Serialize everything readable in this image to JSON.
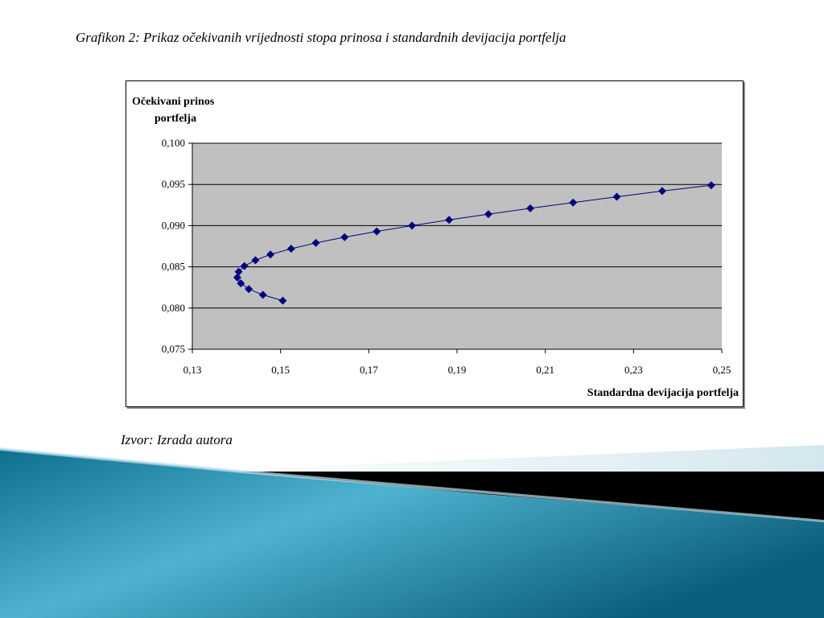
{
  "slide": {
    "caption": "Grafikon 2: Prikaz očekivanih vrijednosti stopa prinosa i standardnih devijacija portfelja",
    "source": "Izvor: Izrada autora"
  },
  "colors": {
    "plot_bg": "#c0c0c0",
    "series": "#000080",
    "gridline": "#000000",
    "deco_teal": "#1a88a8",
    "deco_black": "#000000",
    "deco_light": "#d6e9ef"
  },
  "chart_data": {
    "type": "scatter",
    "title": "",
    "ylabel_lines": [
      "Očekivani prinos",
      "portfelja"
    ],
    "xlabel": "Standardna devijacija portfelja",
    "xlim": [
      0.13,
      0.25
    ],
    "ylim": [
      0.075,
      0.1
    ],
    "x_ticks": [
      "0,13",
      "0,15",
      "0,17",
      "0,19",
      "0,21",
      "0,23",
      "0,25"
    ],
    "y_ticks": [
      "0,075",
      "0,080",
      "0,085",
      "0,090",
      "0,095",
      "0,100"
    ],
    "x_tick_values": [
      0.13,
      0.15,
      0.17,
      0.19,
      0.21,
      0.23,
      0.25
    ],
    "y_tick_values": [
      0.075,
      0.08,
      0.085,
      0.09,
      0.095,
      0.1
    ],
    "grid": "horizontal",
    "legend": "none",
    "connect_points": true,
    "marker": "diamond",
    "series": [
      {
        "points": [
          [
            0.1505,
            0.0809
          ],
          [
            0.146,
            0.0816
          ],
          [
            0.1428,
            0.0823
          ],
          [
            0.141,
            0.083
          ],
          [
            0.1402,
            0.0837
          ],
          [
            0.1405,
            0.0844
          ],
          [
            0.1418,
            0.0851
          ],
          [
            0.1443,
            0.0858
          ],
          [
            0.1477,
            0.0865
          ],
          [
            0.1524,
            0.0872
          ],
          [
            0.158,
            0.0879
          ],
          [
            0.1645,
            0.0886
          ],
          [
            0.1718,
            0.0893
          ],
          [
            0.1798,
            0.09
          ],
          [
            0.1882,
            0.0907
          ],
          [
            0.1971,
            0.0914
          ],
          [
            0.2066,
            0.0921
          ],
          [
            0.2163,
            0.0928
          ],
          [
            0.2262,
            0.0935
          ],
          [
            0.2365,
            0.0942
          ],
          [
            0.2476,
            0.0949
          ]
        ]
      }
    ]
  }
}
